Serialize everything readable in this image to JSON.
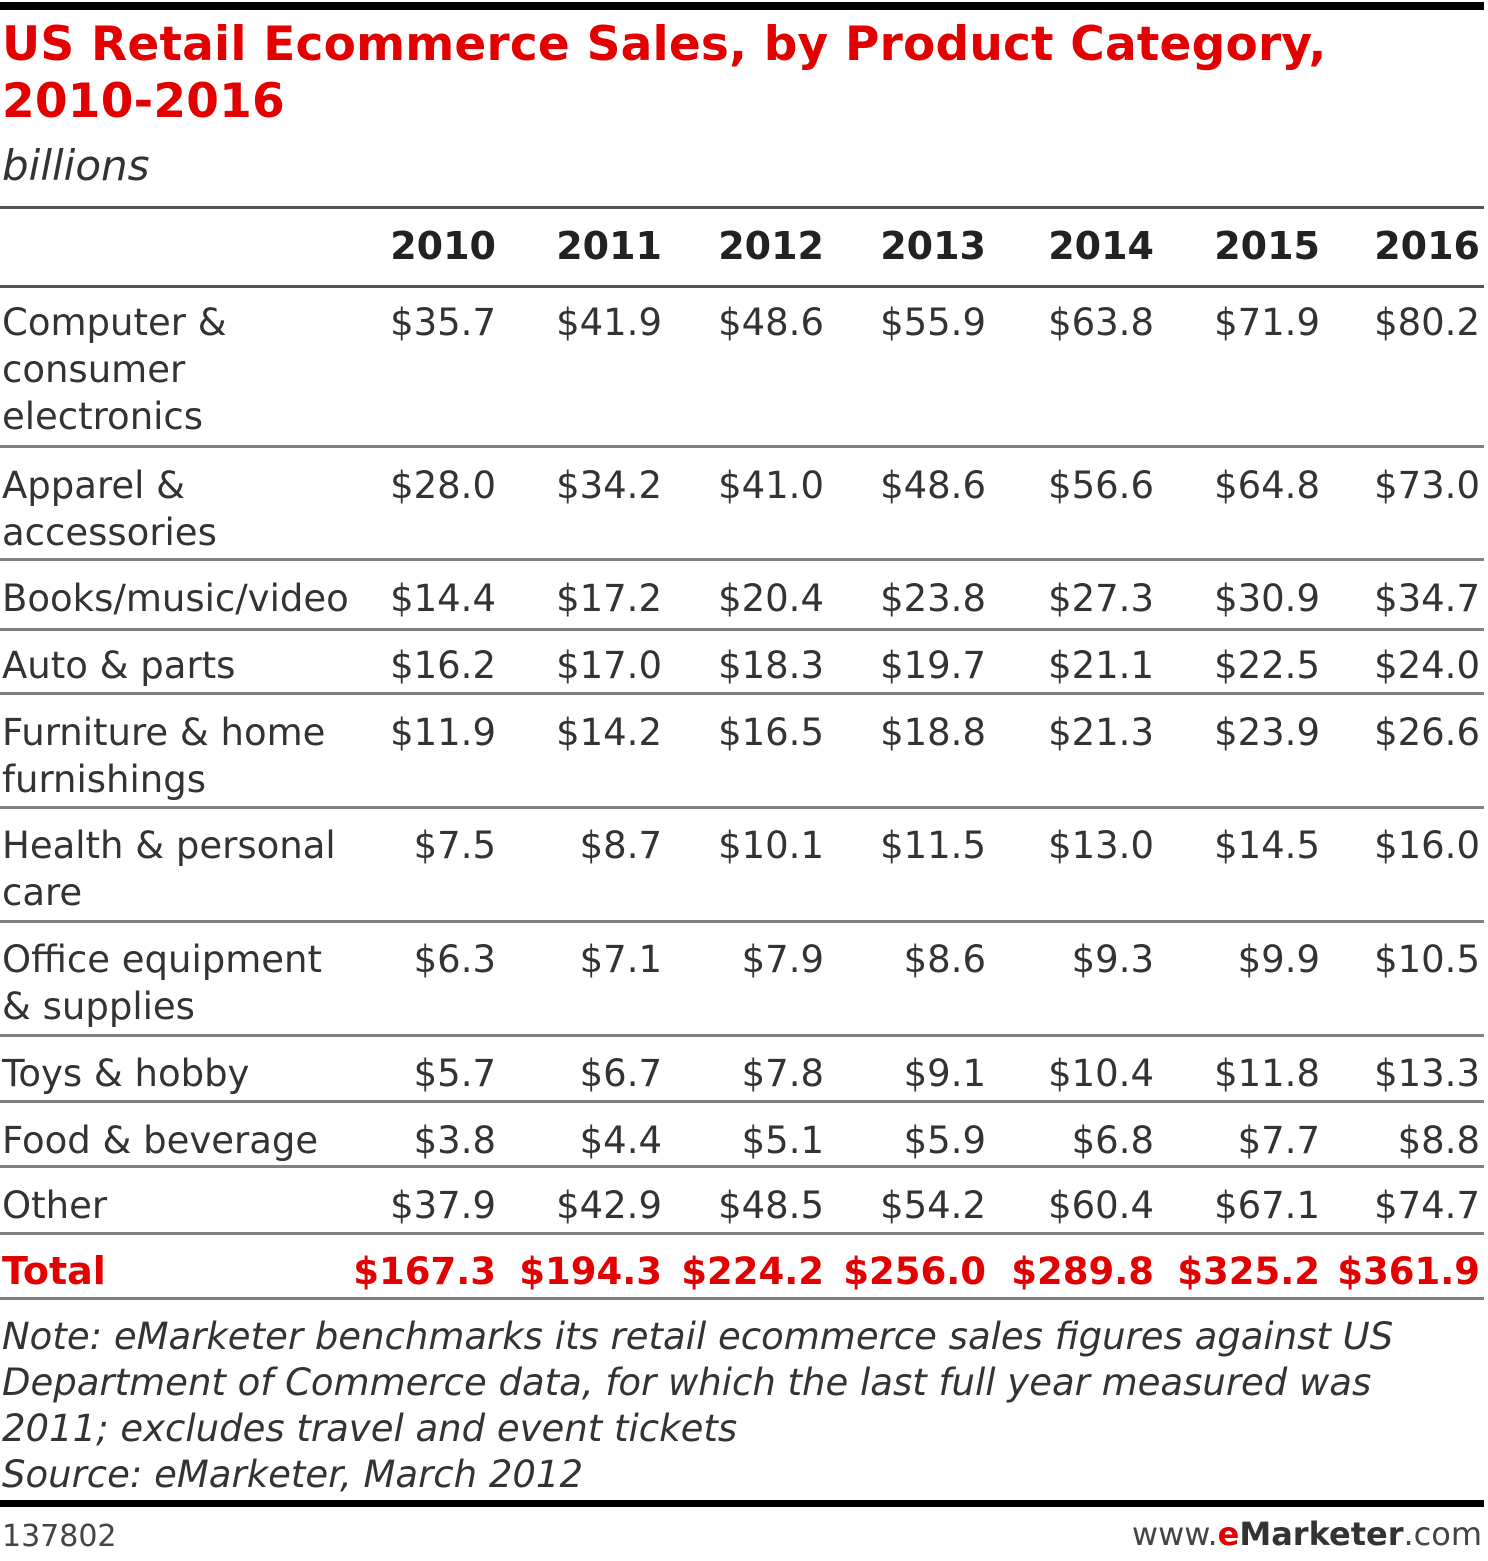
{
  "chart_data": {
    "type": "table",
    "title": "US Retail Ecommerce Sales, by Product Category, 2010-2016",
    "subtitle": "billions",
    "columns": [
      "2010",
      "2011",
      "2012",
      "2013",
      "2014",
      "2015",
      "2016"
    ],
    "rows": [
      {
        "category": "Computer & consumer electronics",
        "values": [
          "$35.7",
          "$41.9",
          "$48.6",
          "$55.9",
          "$63.8",
          "$71.9",
          "$80.2"
        ]
      },
      {
        "category": "Apparel & accessories",
        "values": [
          "$28.0",
          "$34.2",
          "$41.0",
          "$48.6",
          "$56.6",
          "$64.8",
          "$73.0"
        ]
      },
      {
        "category": "Books/music/video",
        "values": [
          "$14.4",
          "$17.2",
          "$20.4",
          "$23.8",
          "$27.3",
          "$30.9",
          "$34.7"
        ]
      },
      {
        "category": "Auto & parts",
        "values": [
          "$16.2",
          "$17.0",
          "$18.3",
          "$19.7",
          "$21.1",
          "$22.5",
          "$24.0"
        ]
      },
      {
        "category": "Furniture & home furnishings",
        "values": [
          "$11.9",
          "$14.2",
          "$16.5",
          "$18.8",
          "$21.3",
          "$23.9",
          "$26.6"
        ]
      },
      {
        "category": "Health & personal care",
        "values": [
          "$7.5",
          "$8.7",
          "$10.1",
          "$11.5",
          "$13.0",
          "$14.5",
          "$16.0"
        ]
      },
      {
        "category": "Office equipment & supplies",
        "values": [
          "$6.3",
          "$7.1",
          "$7.9",
          "$8.6",
          "$9.3",
          "$9.9",
          "$10.5"
        ]
      },
      {
        "category": "Toys & hobby",
        "values": [
          "$5.7",
          "$6.7",
          "$7.8",
          "$9.1",
          "$10.4",
          "$11.8",
          "$13.3"
        ]
      },
      {
        "category": "Food & beverage",
        "values": [
          "$3.8",
          "$4.4",
          "$5.1",
          "$5.9",
          "$6.8",
          "$7.7",
          "$8.8"
        ]
      },
      {
        "category": "Other",
        "values": [
          "$37.9",
          "$42.9",
          "$48.5",
          "$54.2",
          "$60.4",
          "$67.1",
          "$74.7"
        ]
      }
    ],
    "total": {
      "label": "Total",
      "values": [
        "$167.3",
        "$194.3",
        "$224.2",
        "$256.0",
        "$289.8",
        "$325.2",
        "$361.9"
      ]
    },
    "note": "Note: eMarketer benchmarks its retail ecommerce sales figures against US Department of Commerce data, for which the last full year measured was 2011; excludes travel and event tickets",
    "source": "Source: eMarketer, March 2012",
    "chart_id": "137802",
    "brand": {
      "prefix": "www.",
      "e": "e",
      "name": "Marketer",
      "suffix": ".com"
    },
    "colors": {
      "title": "#e20000",
      "total": "#e20000",
      "text": "#333333",
      "rules": "#555555"
    }
  }
}
